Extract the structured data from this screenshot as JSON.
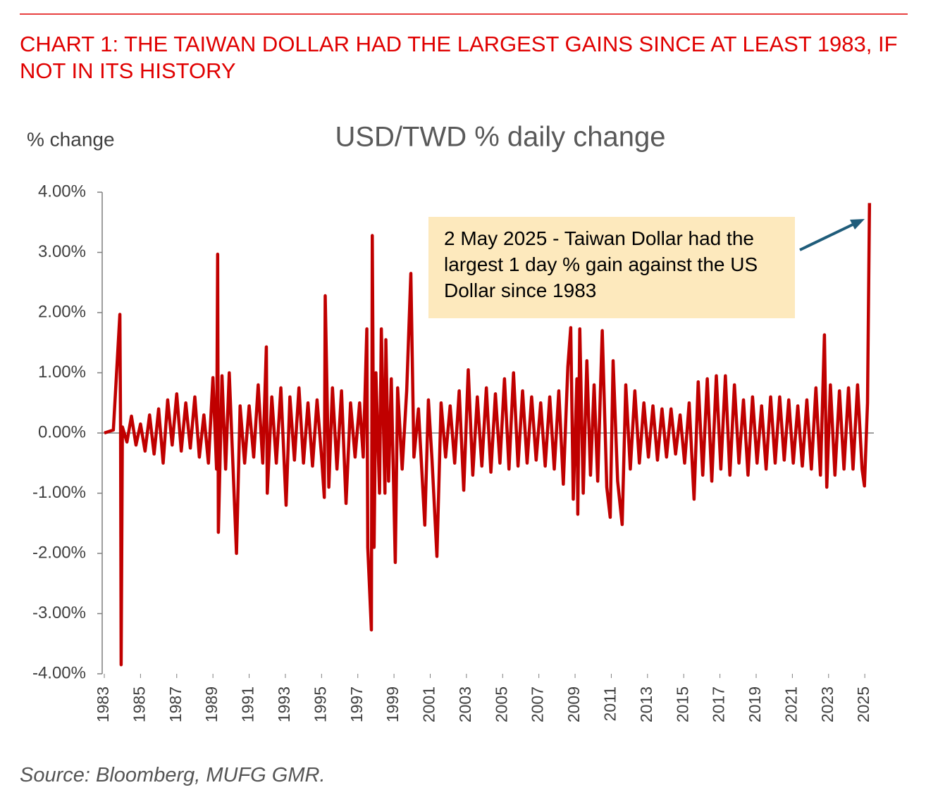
{
  "chart_data": {
    "type": "line",
    "header": "CHART 1: THE TAIWAN DOLLAR HAD THE LARGEST GAINS SINCE AT LEAST 1983, IF NOT IN ITS HISTORY",
    "title": "USD/TWD % daily change",
    "y_label": "% change",
    "annotation": "2 May 2025 - Taiwan Dollar had the largest 1 day % gain against the US Dollar since 1983",
    "source": "Source: Bloomberg, MUFG GMR.",
    "color": "#c00000",
    "xlim": [
      1983,
      2025.5
    ],
    "xticks": [
      1983,
      1985,
      1987,
      1989,
      1991,
      1993,
      1995,
      1997,
      1999,
      2001,
      2003,
      2005,
      2007,
      2009,
      2011,
      2013,
      2015,
      2017,
      2019,
      2021,
      2023,
      2025
    ],
    "ylim": [
      -4,
      4
    ],
    "yticks": [
      {
        "value": 4,
        "label": "4.00%"
      },
      {
        "value": 3,
        "label": "3.00%"
      },
      {
        "value": 2,
        "label": "2.00%"
      },
      {
        "value": 1,
        "label": "1.00%"
      },
      {
        "value": 0,
        "label": "0.00%"
      },
      {
        "value": -1,
        "label": "-1.00%"
      },
      {
        "value": -2,
        "label": "-2.00%"
      },
      {
        "value": -3,
        "label": "-3.00%"
      },
      {
        "value": -4,
        "label": "-4.00%"
      }
    ],
    "x": [
      1983.0,
      1983.5,
      1983.86,
      1983.9,
      1983.93,
      1984.0,
      1984.25,
      1984.5,
      1984.75,
      1985.0,
      1985.25,
      1985.5,
      1985.75,
      1986.0,
      1986.25,
      1986.5,
      1986.75,
      1987.0,
      1987.25,
      1987.5,
      1987.75,
      1988.0,
      1988.25,
      1988.5,
      1988.75,
      1989.0,
      1989.2,
      1989.26,
      1989.3,
      1989.5,
      1989.7,
      1989.9,
      1990.1,
      1990.3,
      1990.5,
      1990.75,
      1991.0,
      1991.25,
      1991.5,
      1991.75,
      1991.95,
      1992.0,
      1992.25,
      1992.5,
      1992.75,
      1993.04,
      1993.25,
      1993.5,
      1993.75,
      1994.0,
      1994.25,
      1994.5,
      1994.75,
      1995.0,
      1995.15,
      1995.2,
      1995.4,
      1995.6,
      1995.85,
      1996.1,
      1996.35,
      1996.6,
      1996.85,
      1997.1,
      1997.3,
      1997.5,
      1997.55,
      1997.75,
      1997.8,
      1997.9,
      1998.0,
      1998.2,
      1998.3,
      1998.5,
      1998.55,
      1998.7,
      1998.85,
      1999.07,
      1999.2,
      1999.45,
      1999.7,
      1999.93,
      2000.1,
      2000.35,
      2000.7,
      2000.9,
      2001.1,
      2001.37,
      2001.6,
      2001.85,
      2002.1,
      2002.35,
      2002.6,
      2002.85,
      2003.1,
      2003.35,
      2003.6,
      2003.85,
      2004.1,
      2004.35,
      2004.6,
      2004.85,
      2005.1,
      2005.35,
      2005.6,
      2005.85,
      2006.1,
      2006.35,
      2006.6,
      2006.85,
      2007.1,
      2007.35,
      2007.6,
      2007.85,
      2008.1,
      2008.35,
      2008.6,
      2008.76,
      2008.9,
      2009.1,
      2009.15,
      2009.26,
      2009.45,
      2009.65,
      2009.85,
      2010.05,
      2010.25,
      2010.5,
      2010.75,
      2010.94,
      2011.1,
      2011.35,
      2011.6,
      2011.8,
      2012.05,
      2012.3,
      2012.55,
      2012.8,
      2013.05,
      2013.3,
      2013.55,
      2013.8,
      2014.05,
      2014.3,
      2014.55,
      2014.8,
      2015.05,
      2015.3,
      2015.57,
      2015.8,
      2016.05,
      2016.3,
      2016.55,
      2016.8,
      2017.05,
      2017.3,
      2017.55,
      2017.8,
      2018.05,
      2018.3,
      2018.55,
      2018.8,
      2019.05,
      2019.3,
      2019.55,
      2019.8,
      2020.05,
      2020.3,
      2020.55,
      2020.8,
      2021.05,
      2021.3,
      2021.55,
      2021.8,
      2022.05,
      2022.3,
      2022.55,
      2022.77,
      2022.9,
      2023.1,
      2023.35,
      2023.6,
      2023.85,
      2024.1,
      2024.35,
      2024.6,
      2024.85,
      2024.98,
      2025.15,
      2025.26
    ],
    "values": [
      0,
      0.05,
      1.97,
      0,
      -3.85,
      0.1,
      -0.15,
      0.28,
      -0.2,
      0.15,
      -0.3,
      0.3,
      -0.35,
      0.4,
      -0.5,
      0.55,
      -0.2,
      0.65,
      -0.3,
      0.5,
      -0.25,
      0.6,
      -0.4,
      0.3,
      -0.5,
      0.92,
      -0.6,
      2.97,
      -1.65,
      0.95,
      -0.6,
      1.0,
      -0.5,
      -2.0,
      0.45,
      -0.5,
      0.45,
      -0.4,
      0.8,
      -0.5,
      1.43,
      -1.0,
      0.6,
      -0.5,
      0.75,
      -1.2,
      0.6,
      -0.45,
      0.75,
      -0.5,
      0.5,
      -0.55,
      0.55,
      -0.4,
      -1.07,
      2.28,
      -0.9,
      0.75,
      -0.6,
      0.7,
      -1.17,
      0.5,
      -0.4,
      0.5,
      -0.4,
      1.73,
      -1.9,
      -3.27,
      3.28,
      -1.9,
      1.0,
      -1.0,
      1.73,
      -1.0,
      1.55,
      -0.8,
      0.9,
      -2.15,
      0.75,
      -0.6,
      0.7,
      2.65,
      -0.4,
      0.4,
      -1.53,
      0.55,
      -0.45,
      -2.05,
      0.5,
      -0.4,
      0.45,
      -0.5,
      0.7,
      -0.95,
      1.05,
      -0.7,
      0.6,
      -0.55,
      0.75,
      -0.65,
      0.65,
      -0.5,
      0.9,
      -0.6,
      1.0,
      -0.55,
      0.7,
      -0.5,
      0.6,
      -0.45,
      0.5,
      -0.55,
      0.6,
      -0.6,
      0.7,
      -0.85,
      1.1,
      1.75,
      -1.1,
      0.9,
      -1.35,
      1.73,
      -1.0,
      1.2,
      -0.7,
      0.8,
      -0.8,
      1.7,
      -0.9,
      -1.4,
      1.2,
      -0.8,
      -1.52,
      0.8,
      -0.6,
      0.7,
      -0.5,
      0.5,
      -0.4,
      0.45,
      -0.45,
      0.4,
      -0.4,
      0.4,
      -0.35,
      0.3,
      -0.5,
      0.5,
      -1.1,
      0.85,
      -0.7,
      0.9,
      -0.8,
      0.95,
      -0.6,
      0.95,
      -0.7,
      0.8,
      -0.5,
      0.55,
      -0.7,
      0.6,
      -0.5,
      0.45,
      -0.6,
      0.6,
      -0.5,
      0.6,
      -0.45,
      0.55,
      -0.5,
      0.45,
      -0.55,
      0.55,
      -0.6,
      0.75,
      -0.7,
      1.63,
      -0.9,
      0.8,
      -0.7,
      0.7,
      -0.6,
      0.75,
      -0.6,
      0.8,
      -0.6,
      -0.88,
      0.5,
      3.82
    ]
  }
}
